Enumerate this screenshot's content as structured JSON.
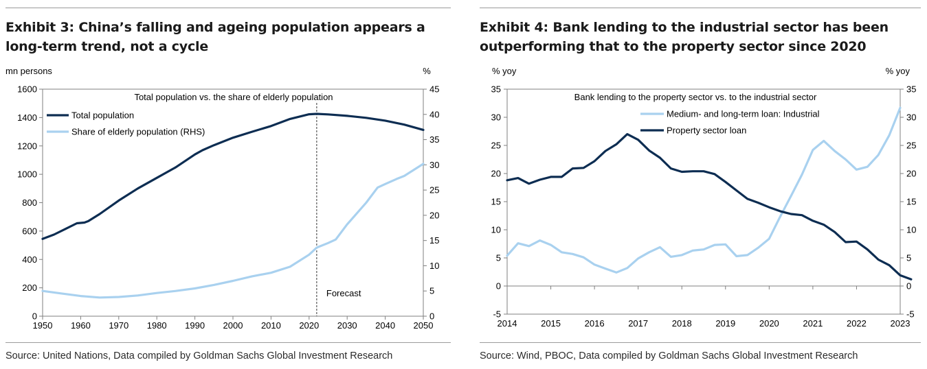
{
  "chart_data": [
    {
      "type": "line",
      "exhibit_title": "Exhibit 3: China’s falling and ageing population appears a long-term trend, not a cycle",
      "title": "Total population vs. the share of elderly population",
      "ylabel": "mn persons",
      "y2label": "%",
      "xlim": [
        1950,
        2050
      ],
      "ylim": [
        0,
        1600
      ],
      "y2lim": [
        0,
        45
      ],
      "x_ticks": [
        1950,
        1960,
        1970,
        1980,
        1990,
        2000,
        2010,
        2020,
        2030,
        2040,
        2050
      ],
      "y_ticks": [
        0,
        200,
        400,
        600,
        800,
        1000,
        1200,
        1400,
        1600
      ],
      "y2_ticks": [
        0,
        5,
        10,
        15,
        20,
        25,
        30,
        35,
        40,
        45
      ],
      "annotation": "Forecast",
      "forecast_x": 2022,
      "series": [
        {
          "name": "Total population",
          "axis": "left",
          "color": "#0d2d52",
          "points": [
            [
              1950,
              545
            ],
            [
              1953,
              575
            ],
            [
              1956,
              615
            ],
            [
              1959,
              655
            ],
            [
              1961,
              660
            ],
            [
              1962,
              670
            ],
            [
              1965,
              720
            ],
            [
              1970,
              815
            ],
            [
              1975,
              900
            ],
            [
              1980,
              975
            ],
            [
              1985,
              1050
            ],
            [
              1990,
              1140
            ],
            [
              1992,
              1170
            ],
            [
              1995,
              1205
            ],
            [
              2000,
              1258
            ],
            [
              2005,
              1300
            ],
            [
              2010,
              1340
            ],
            [
              2015,
              1390
            ],
            [
              2020,
              1423
            ],
            [
              2022,
              1426
            ],
            [
              2025,
              1422
            ],
            [
              2030,
              1412
            ],
            [
              2035,
              1398
            ],
            [
              2040,
              1378
            ],
            [
              2045,
              1350
            ],
            [
              2050,
              1313
            ]
          ]
        },
        {
          "name": "Share of elderly population (RHS)",
          "axis": "right",
          "color": "#a9d1ef",
          "points": [
            [
              1950,
              5.0
            ],
            [
              1955,
              4.5
            ],
            [
              1960,
              4.0
            ],
            [
              1965,
              3.7
            ],
            [
              1970,
              3.8
            ],
            [
              1975,
              4.1
            ],
            [
              1980,
              4.6
            ],
            [
              1985,
              5.0
            ],
            [
              1990,
              5.5
            ],
            [
              1995,
              6.2
            ],
            [
              2000,
              7.0
            ],
            [
              2005,
              7.9
            ],
            [
              2010,
              8.6
            ],
            [
              2015,
              9.8
            ],
            [
              2020,
              12.2
            ],
            [
              2022,
              13.6
            ],
            [
              2025,
              14.5
            ],
            [
              2027,
              15.2
            ],
            [
              2030,
              18.2
            ],
            [
              2035,
              22.5
            ],
            [
              2038,
              25.5
            ],
            [
              2040,
              26.2
            ],
            [
              2043,
              27.2
            ],
            [
              2045,
              27.8
            ],
            [
              2050,
              30.2
            ]
          ]
        }
      ]
    },
    {
      "type": "line",
      "exhibit_title": "Exhibit 4: Bank lending to the industrial sector has been outperforming that to the property sector since 2020",
      "title": "Bank lending to the property sector vs. to the industrial sector",
      "ylabel": "% yoy",
      "y2label": "% yoy",
      "xlim": [
        2014,
        2023
      ],
      "ylim": [
        -5,
        35
      ],
      "x_ticks": [
        2014,
        2015,
        2016,
        2017,
        2018,
        2019,
        2020,
        2021,
        2022,
        2023
      ],
      "y_ticks": [
        -5,
        0,
        5,
        10,
        15,
        20,
        25,
        30,
        35
      ],
      "series": [
        {
          "name": "Medium- and long-term loan: Industrial",
          "color": "#a9d1ef",
          "points": [
            [
              2014.0,
              5.4
            ],
            [
              2014.25,
              7.6
            ],
            [
              2014.5,
              7.1
            ],
            [
              2014.75,
              8.1
            ],
            [
              2015.0,
              7.3
            ],
            [
              2015.25,
              6.0
            ],
            [
              2015.5,
              5.7
            ],
            [
              2015.75,
              5.1
            ],
            [
              2016.0,
              3.8
            ],
            [
              2016.25,
              3.1
            ],
            [
              2016.5,
              2.4
            ],
            [
              2016.75,
              3.2
            ],
            [
              2017.0,
              4.9
            ],
            [
              2017.25,
              6.0
            ],
            [
              2017.5,
              6.9
            ],
            [
              2017.75,
              5.2
            ],
            [
              2018.0,
              5.5
            ],
            [
              2018.25,
              6.3
            ],
            [
              2018.5,
              6.5
            ],
            [
              2018.75,
              7.3
            ],
            [
              2019.0,
              7.4
            ],
            [
              2019.25,
              5.3
            ],
            [
              2019.5,
              5.5
            ],
            [
              2019.75,
              6.8
            ],
            [
              2020.0,
              8.4
            ],
            [
              2020.25,
              12.3
            ],
            [
              2020.5,
              16.0
            ],
            [
              2020.75,
              19.8
            ],
            [
              2021.0,
              24.2
            ],
            [
              2021.25,
              25.8
            ],
            [
              2021.5,
              24.0
            ],
            [
              2021.75,
              22.5
            ],
            [
              2022.0,
              20.7
            ],
            [
              2022.25,
              21.2
            ],
            [
              2022.5,
              23.3
            ],
            [
              2022.75,
              26.8
            ],
            [
              2023.0,
              31.7
            ]
          ]
        },
        {
          "name": "Property sector loan",
          "color": "#0d2d52",
          "points": [
            [
              2014.0,
              18.8
            ],
            [
              2014.25,
              19.2
            ],
            [
              2014.5,
              18.2
            ],
            [
              2014.75,
              18.9
            ],
            [
              2015.0,
              19.4
            ],
            [
              2015.25,
              19.4
            ],
            [
              2015.5,
              20.9
            ],
            [
              2015.75,
              21.0
            ],
            [
              2016.0,
              22.2
            ],
            [
              2016.25,
              24.0
            ],
            [
              2016.5,
              25.2
            ],
            [
              2016.75,
              27.0
            ],
            [
              2017.0,
              26.0
            ],
            [
              2017.25,
              24.1
            ],
            [
              2017.5,
              22.8
            ],
            [
              2017.75,
              20.9
            ],
            [
              2018.0,
              20.3
            ],
            [
              2018.25,
              20.4
            ],
            [
              2018.5,
              20.4
            ],
            [
              2018.75,
              19.9
            ],
            [
              2019.0,
              18.5
            ],
            [
              2019.25,
              17.0
            ],
            [
              2019.5,
              15.5
            ],
            [
              2019.75,
              14.8
            ],
            [
              2020.0,
              14.0
            ],
            [
              2020.25,
              13.3
            ],
            [
              2020.5,
              12.8
            ],
            [
              2020.75,
              12.6
            ],
            [
              2021.0,
              11.6
            ],
            [
              2021.25,
              10.9
            ],
            [
              2021.5,
              9.6
            ],
            [
              2021.75,
              7.8
            ],
            [
              2022.0,
              7.9
            ],
            [
              2022.25,
              6.5
            ],
            [
              2022.5,
              4.7
            ],
            [
              2022.75,
              3.7
            ],
            [
              2023.0,
              1.9
            ],
            [
              2023.25,
              1.2
            ]
          ]
        }
      ]
    }
  ],
  "sources": {
    "left": "Source: United Nations, Data compiled by Goldman Sachs Global Investment Research",
    "right": "Source: Wind, PBOC, Data compiled by Goldman Sachs Global Investment Research"
  }
}
